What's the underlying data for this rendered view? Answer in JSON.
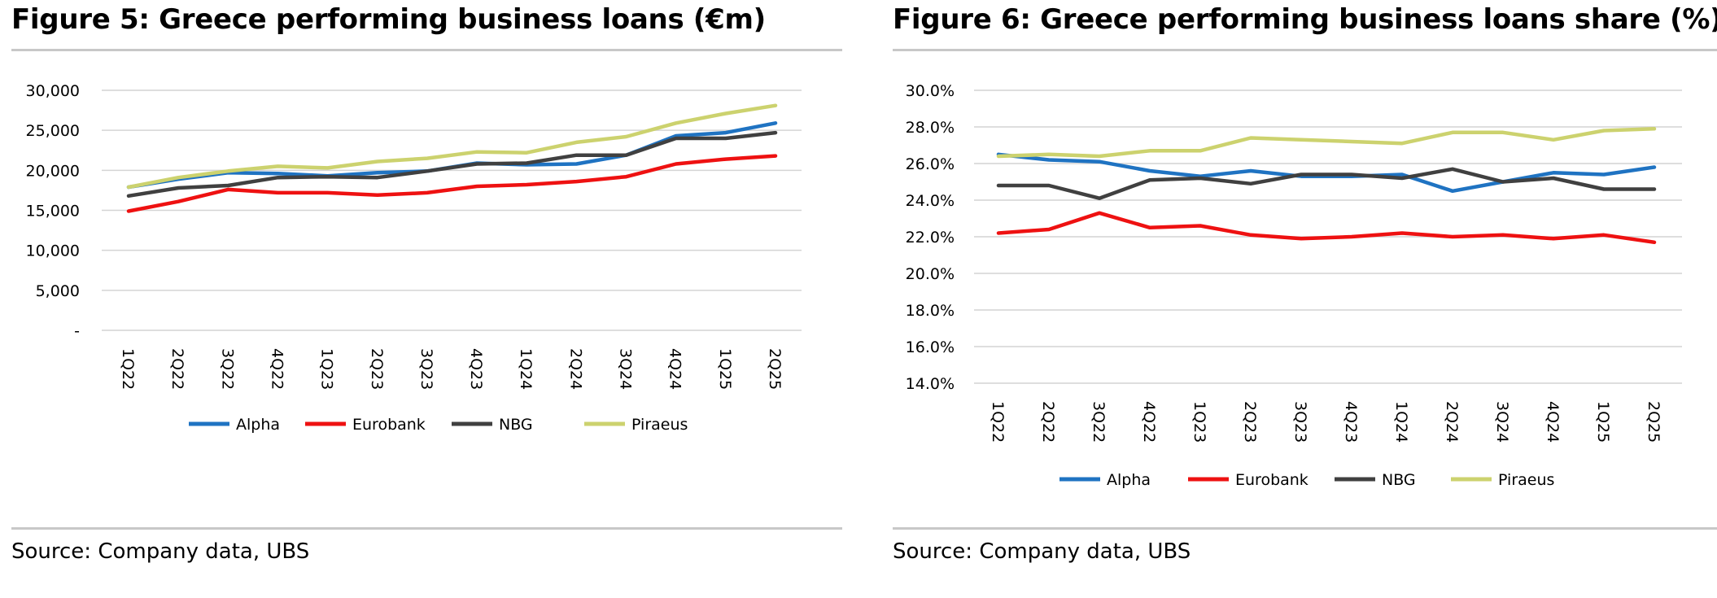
{
  "panels": [
    {
      "title": "Figure 5: Greece performing business loans (€m)",
      "source": "Source: Company data, UBS"
    },
    {
      "title": "Figure 6: Greece performing business loans share (%)",
      "source": "Source: Company data, UBS"
    }
  ],
  "colors": {
    "Alpha": "#1f73c2",
    "Eurobank": "#ee1111",
    "NBG": "#404040",
    "Piraeus": "#ccd26e",
    "grid": "#d4d4d4"
  },
  "chart_data": [
    {
      "type": "line",
      "title": "Figure 5: Greece performing business loans (€m)",
      "categories": [
        "1Q22",
        "2Q22",
        "3Q22",
        "4Q22",
        "1Q23",
        "2Q23",
        "3Q23",
        "4Q23",
        "1Q24",
        "2Q24",
        "3Q24",
        "4Q24",
        "1Q25",
        "2Q25"
      ],
      "ylim": [
        0,
        30000
      ],
      "yticks": [
        0,
        5000,
        10000,
        15000,
        20000,
        25000,
        30000
      ],
      "ytick_labels": [
        "-",
        "5,000",
        "10,000",
        "15,000",
        "20,000",
        "25,000",
        "30,000"
      ],
      "grid": true,
      "legend": "bottom",
      "series": [
        {
          "name": "Alpha",
          "values": [
            17900,
            18900,
            19700,
            19600,
            19300,
            19700,
            19900,
            20900,
            20700,
            20800,
            21900,
            24300,
            24700,
            25900
          ]
        },
        {
          "name": "Eurobank",
          "values": [
            14900,
            16100,
            17600,
            17200,
            17200,
            16900,
            17200,
            18000,
            18200,
            18600,
            19200,
            20800,
            21400,
            21800
          ]
        },
        {
          "name": "NBG",
          "values": [
            16800,
            17800,
            18100,
            19100,
            19200,
            19100,
            19900,
            20800,
            20900,
            21900,
            21900,
            24000,
            24000,
            24700
          ]
        },
        {
          "name": "Piraeus",
          "values": [
            17900,
            19100,
            19900,
            20500,
            20300,
            21100,
            21500,
            22300,
            22200,
            23500,
            24200,
            25900,
            27100,
            28100
          ]
        }
      ]
    },
    {
      "type": "line",
      "title": "Figure 6: Greece performing business loans share (%)",
      "categories": [
        "1Q22",
        "2Q22",
        "3Q22",
        "4Q22",
        "1Q23",
        "2Q23",
        "3Q23",
        "4Q23",
        "1Q24",
        "2Q24",
        "3Q24",
        "4Q24",
        "1Q25",
        "2Q25"
      ],
      "ylim": [
        14.0,
        30.0
      ],
      "yticks": [
        14,
        16,
        18,
        20,
        22,
        24,
        26,
        28,
        30
      ],
      "ytick_labels": [
        "14.0%",
        "16.0%",
        "18.0%",
        "20.0%",
        "22.0%",
        "24.0%",
        "26.0%",
        "28.0%",
        "30.0%"
      ],
      "grid": true,
      "legend": "bottom",
      "series": [
        {
          "name": "Alpha",
          "values": [
            26.5,
            26.2,
            26.1,
            25.6,
            25.3,
            25.6,
            25.3,
            25.3,
            25.4,
            24.5,
            25.0,
            25.5,
            25.4,
            25.8
          ]
        },
        {
          "name": "Eurobank",
          "values": [
            22.2,
            22.4,
            23.3,
            22.5,
            22.6,
            22.1,
            21.9,
            22.0,
            22.2,
            22.0,
            22.1,
            21.9,
            22.1,
            21.7
          ]
        },
        {
          "name": "NBG",
          "values": [
            24.8,
            24.8,
            24.1,
            25.1,
            25.2,
            24.9,
            25.4,
            25.4,
            25.2,
            25.7,
            25.0,
            25.2,
            24.6,
            24.6
          ]
        },
        {
          "name": "Piraeus",
          "values": [
            26.4,
            26.5,
            26.4,
            26.7,
            26.7,
            27.4,
            27.3,
            27.2,
            27.1,
            27.7,
            27.7,
            27.3,
            27.8,
            27.9
          ]
        }
      ]
    }
  ]
}
